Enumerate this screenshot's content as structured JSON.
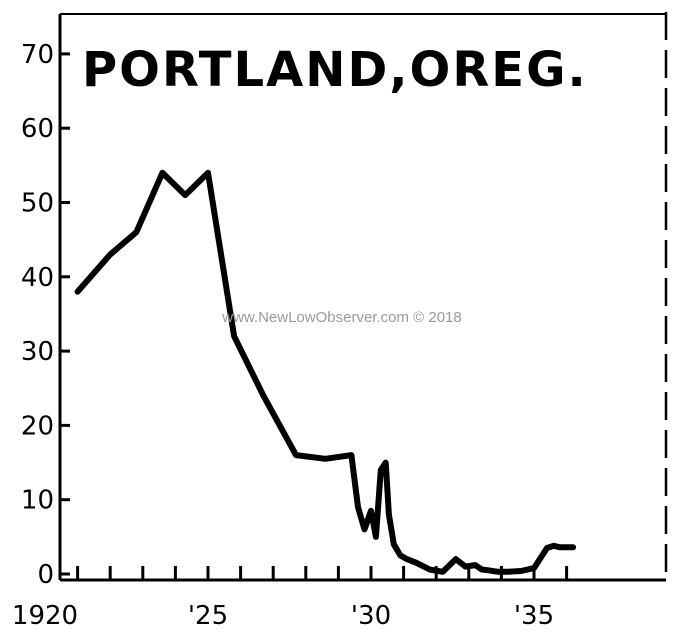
{
  "chart_data": {
    "type": "line",
    "title": "PORTLAND,OREG.",
    "xlabel": "",
    "ylabel": "",
    "xlim": [
      1920,
      1937
    ],
    "ylim": [
      0,
      75
    ],
    "y_ticks": [
      0,
      10,
      20,
      30,
      40,
      50,
      60,
      70
    ],
    "x_ticks": [
      {
        "value": 1920,
        "label": "1920"
      },
      {
        "value": 1925,
        "label": "'25"
      },
      {
        "value": 1930,
        "label": "'30"
      },
      {
        "value": 1935,
        "label": "'35"
      }
    ],
    "x_minor_ticks": [
      1920,
      1921,
      1922,
      1923,
      1924,
      1925,
      1926,
      1927,
      1928,
      1929,
      1930,
      1931,
      1932,
      1933,
      1934,
      1935,
      1936
    ],
    "grid": false,
    "series": [
      {
        "color": "#000000",
        "x": [
          1921.0,
          1922.0,
          1922.8,
          1923.6,
          1924.3,
          1925.0,
          1925.8,
          1926.7,
          1927.7,
          1928.6,
          1929.4,
          1929.6,
          1929.8,
          1930.0,
          1930.15,
          1930.3,
          1930.45,
          1930.55,
          1930.7,
          1930.9,
          1931.1,
          1931.4,
          1931.8,
          1932.2,
          1932.6,
          1932.9,
          1933.2,
          1933.4,
          1933.6,
          1933.9,
          1934.2,
          1934.6,
          1935.0,
          1935.4,
          1935.6,
          1935.8,
          1936.2
        ],
        "y": [
          38,
          43,
          46,
          54,
          51,
          54,
          32,
          24,
          16,
          15.5,
          16,
          9,
          6,
          8.5,
          5,
          14,
          15,
          8,
          4,
          2.5,
          2,
          1.5,
          0.6,
          0.3,
          2,
          1,
          1.2,
          0.6,
          0.5,
          0.3,
          0.3,
          0.4,
          0.8,
          3.5,
          3.8,
          3.6,
          3.6
        ]
      }
    ],
    "annotations": [
      {
        "text": "www.NewLowObserver.com © 2018",
        "kind": "watermark"
      }
    ]
  }
}
